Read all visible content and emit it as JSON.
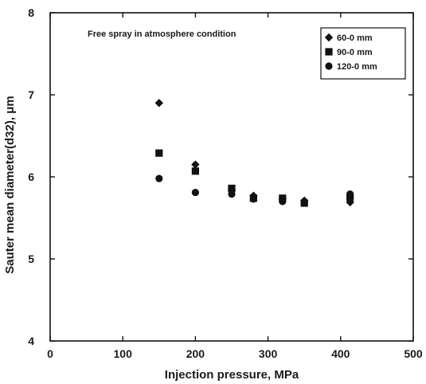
{
  "chart_data": {
    "type": "scatter",
    "title": "",
    "annotation": "Free spray in atmosphere condition",
    "xlabel": "Injection pressure, MPa",
    "ylabel": "Sauter mean diameter(d32), μm",
    "xlim": [
      0,
      500
    ],
    "ylim": [
      4,
      8
    ],
    "xticks": [
      0,
      100,
      200,
      300,
      400,
      500
    ],
    "yticks": [
      4,
      5,
      6,
      7,
      8
    ],
    "grid": false,
    "legend_position": "top-right",
    "series": [
      {
        "name": "60-0 mm",
        "marker": "diamond",
        "x": [
          150,
          200,
          250,
          280,
          320,
          350,
          413
        ],
        "y": [
          6.9,
          6.15,
          5.84,
          5.77,
          5.73,
          5.71,
          5.69
        ]
      },
      {
        "name": "90-0 mm",
        "marker": "square",
        "x": [
          150,
          200,
          250,
          280,
          320,
          350,
          413
        ],
        "y": [
          6.29,
          6.07,
          5.86,
          5.74,
          5.74,
          5.68,
          5.75
        ]
      },
      {
        "name": "120-0 mm",
        "marker": "circle",
        "x": [
          150,
          200,
          250,
          280,
          320,
          350,
          413
        ],
        "y": [
          5.98,
          5.81,
          5.79,
          5.73,
          5.7,
          5.68,
          5.79
        ]
      }
    ]
  },
  "colors": {
    "marker": "#111111",
    "axis": "#111111",
    "background": "#ffffff"
  }
}
